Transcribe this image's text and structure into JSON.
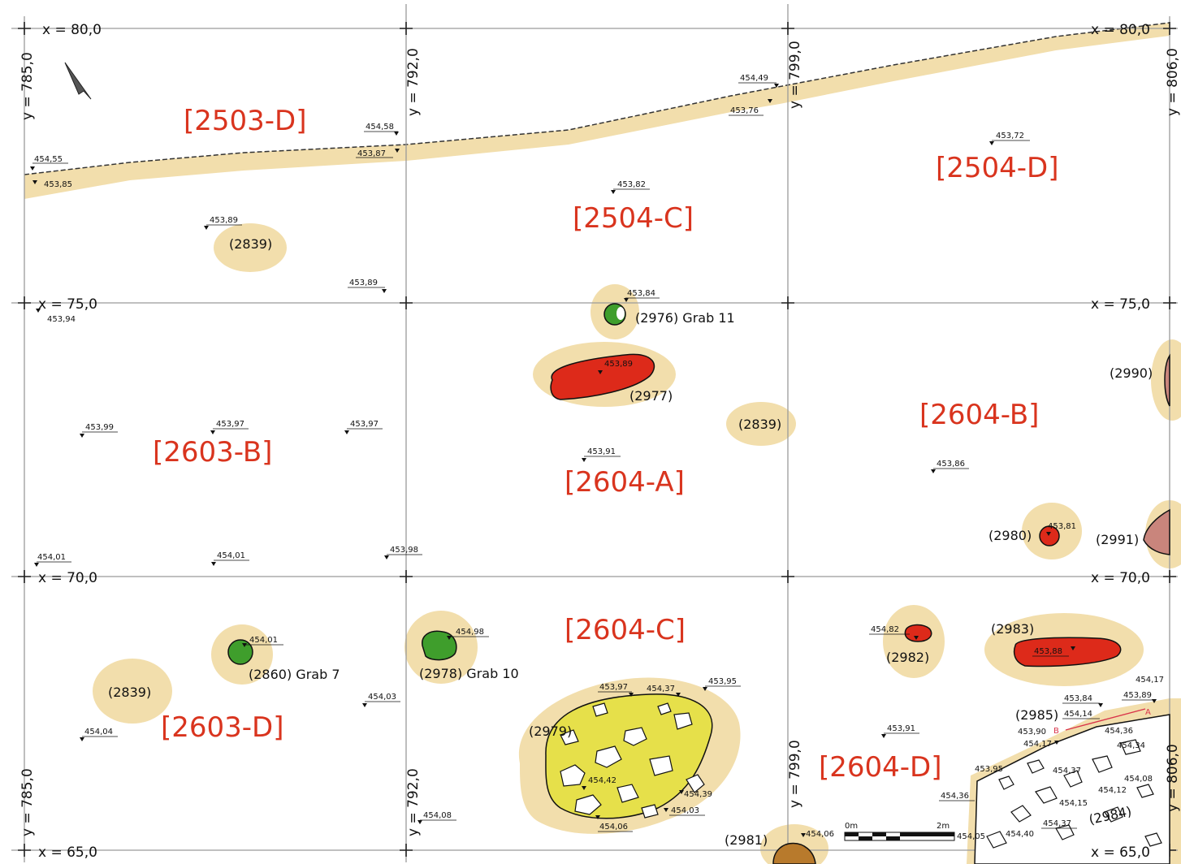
{
  "grid": {
    "x_labels": [
      {
        "id": "x80l",
        "text": "x = 80,0"
      },
      {
        "id": "x80r",
        "text": "x = 80,0"
      },
      {
        "id": "x75l",
        "text": "x = 75,0"
      },
      {
        "id": "x75r",
        "text": "x = 75,0"
      },
      {
        "id": "x70l",
        "text": "x = 70,0"
      },
      {
        "id": "x70r",
        "text": "x = 70,0"
      },
      {
        "id": "x65l",
        "text": "x = 65,0"
      },
      {
        "id": "x65r",
        "text": "x = 65,0"
      }
    ],
    "y_labels": [
      {
        "id": "y785t",
        "text": "y = 785,0"
      },
      {
        "id": "y792t",
        "text": "y = 792,0"
      },
      {
        "id": "y799t",
        "text": "y = 799,0"
      },
      {
        "id": "y806t",
        "text": "y = 806,0"
      },
      {
        "id": "y785b",
        "text": "y = 785,0"
      },
      {
        "id": "y792b",
        "text": "y = 792,0"
      },
      {
        "id": "y799b",
        "text": "y = 799,0"
      },
      {
        "id": "y806b",
        "text": "y = 806,0"
      }
    ]
  },
  "areas": [
    {
      "id": "a2503D",
      "text": "[2503-D]"
    },
    {
      "id": "a2504C",
      "text": "[2504-C]"
    },
    {
      "id": "a2504D",
      "text": "[2504-D]"
    },
    {
      "id": "a2603B",
      "text": "[2603-B]"
    },
    {
      "id": "a2604A",
      "text": "[2604-A]"
    },
    {
      "id": "a2604B",
      "text": "[2604-B]"
    },
    {
      "id": "a2604C",
      "text": "[2604-C]"
    },
    {
      "id": "a2603D",
      "text": "[2603-D]"
    },
    {
      "id": "a2604D",
      "text": "[2604-D]"
    }
  ],
  "features": [
    {
      "id": "f2839a",
      "text": "(2839)"
    },
    {
      "id": "f2976",
      "text": "(2976) Grab 11"
    },
    {
      "id": "f2977",
      "text": "(2977)"
    },
    {
      "id": "f2839b",
      "text": "(2839)"
    },
    {
      "id": "f2990",
      "text": "(2990)"
    },
    {
      "id": "f2980",
      "text": "(2980)"
    },
    {
      "id": "f2991",
      "text": "(2991)"
    },
    {
      "id": "f2860",
      "text": "(2860) Grab 7"
    },
    {
      "id": "f2978",
      "text": "(2978) Grab 10"
    },
    {
      "id": "f2839c",
      "text": "(2839)"
    },
    {
      "id": "f2979",
      "text": "(2979)"
    },
    {
      "id": "f2982",
      "text": "(2982)"
    },
    {
      "id": "f2983",
      "text": "(2983)"
    },
    {
      "id": "f2985",
      "text": "(2985)"
    },
    {
      "id": "f2984",
      "text": "(2984)"
    },
    {
      "id": "f2981",
      "text": "(2981)"
    }
  ],
  "elevations": [
    {
      "id": "e1",
      "text": "454,55"
    },
    {
      "id": "e2",
      "text": "453,85"
    },
    {
      "id": "e3",
      "text": "454,58"
    },
    {
      "id": "e4",
      "text": "453,87"
    },
    {
      "id": "e5",
      "text": "454,49"
    },
    {
      "id": "e6",
      "text": "453,76"
    },
    {
      "id": "e7",
      "text": "453,72"
    },
    {
      "id": "e8",
      "text": "453,82"
    },
    {
      "id": "e9",
      "text": "453,89"
    },
    {
      "id": "e10",
      "text": "453,89"
    },
    {
      "id": "e11",
      "text": "453,94"
    },
    {
      "id": "e12",
      "text": "453,84"
    },
    {
      "id": "e13",
      "text": "453,89"
    },
    {
      "id": "e14",
      "text": "453,99"
    },
    {
      "id": "e15",
      "text": "453,97"
    },
    {
      "id": "e16",
      "text": "453,97"
    },
    {
      "id": "e17",
      "text": "453,91"
    },
    {
      "id": "e18",
      "text": "453,86"
    },
    {
      "id": "e19",
      "text": "453,81"
    },
    {
      "id": "e20",
      "text": "454,01"
    },
    {
      "id": "e21",
      "text": "454,01"
    },
    {
      "id": "e22",
      "text": "453,98"
    },
    {
      "id": "e23",
      "text": "454,01"
    },
    {
      "id": "e24",
      "text": "454,98"
    },
    {
      "id": "e25",
      "text": "454,82"
    },
    {
      "id": "e26",
      "text": "453,88"
    },
    {
      "id": "e27",
      "text": "454,03"
    },
    {
      "id": "e28",
      "text": "454,04"
    },
    {
      "id": "e29",
      "text": "453,97"
    },
    {
      "id": "e30",
      "text": "454,37"
    },
    {
      "id": "e31",
      "text": "453,95"
    },
    {
      "id": "e32",
      "text": "454,42"
    },
    {
      "id": "e33",
      "text": "454,39"
    },
    {
      "id": "e34",
      "text": "454,03"
    },
    {
      "id": "e35",
      "text": "454,06"
    },
    {
      "id": "e36",
      "text": "454,08"
    },
    {
      "id": "e37",
      "text": "453,91"
    },
    {
      "id": "e38",
      "text": "454,17"
    },
    {
      "id": "e39",
      "text": "453,84"
    },
    {
      "id": "e40",
      "text": "453,89"
    },
    {
      "id": "e41",
      "text": "454,14"
    },
    {
      "id": "e42",
      "text": "453,90"
    },
    {
      "id": "e43",
      "text": "454,17"
    },
    {
      "id": "e44",
      "text": "454,36"
    },
    {
      "id": "e45",
      "text": "454,34"
    },
    {
      "id": "e46",
      "text": "453,95"
    },
    {
      "id": "e47",
      "text": "454,37"
    },
    {
      "id": "e48",
      "text": "454,08"
    },
    {
      "id": "e49",
      "text": "454,36"
    },
    {
      "id": "e50",
      "text": "454,12"
    },
    {
      "id": "e51",
      "text": "454,15"
    },
    {
      "id": "e52",
      "text": "454,37"
    },
    {
      "id": "e53",
      "text": "454,05"
    },
    {
      "id": "e54",
      "text": "454,40"
    },
    {
      "id": "e55",
      "text": "454,06"
    }
  ],
  "scale": {
    "start": "0m",
    "end": "2m"
  },
  "profile": {
    "a": "A",
    "b": "B"
  },
  "colors": {
    "sand": "#f2deac",
    "red_fill": "#dd2a1a",
    "green_fill": "#3f9e2c",
    "yellow_fill": "#e6e04a",
    "brown_fill": "#b87a2c",
    "pink_fill": "#c9857c",
    "grid": "#9a9a9a",
    "area_text": "#d9341e"
  }
}
